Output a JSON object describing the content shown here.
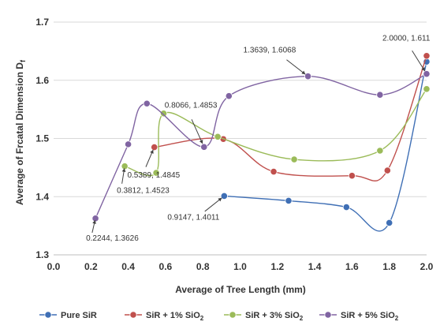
{
  "chart_data": {
    "type": "line",
    "xlabel": "Average of Tree Length (mm)",
    "ylabel": "Average of Frcatal Dimension D",
    "ylabel_sub": "f",
    "xlim": [
      0.0,
      2.0
    ],
    "ylim": [
      1.3,
      1.7
    ],
    "x_ticks": [
      "0.0",
      "0.2",
      "0.4",
      "0.6",
      "0.8",
      "1.0",
      "1.2",
      "1.4",
      "1.6",
      "1.8",
      "2.0"
    ],
    "y_ticks": [
      "1.3",
      "1.4",
      "1.5",
      "1.6",
      "1.7"
    ],
    "grid": "horizontal",
    "legend_position": "bottom",
    "series": [
      {
        "name": "Pure SiR",
        "legend": {
          "pre": "Pure SiR",
          "sub": "",
          "post": ""
        },
        "color": "#3f6fb5",
        "x": [
          0.9147,
          1.26,
          1.57,
          1.8,
          2.0
        ],
        "y": [
          1.4011,
          1.393,
          1.382,
          1.355,
          1.632
        ]
      },
      {
        "name": "SiR + 1% SiO2",
        "legend": {
          "pre": "SiR + 1% SiO",
          "sub": "2",
          "post": ""
        },
        "color": "#c0504d",
        "x": [
          0.54,
          0.91,
          1.18,
          1.6,
          1.79,
          2.0
        ],
        "y": [
          1.485,
          1.499,
          1.443,
          1.436,
          1.445,
          1.642
        ]
      },
      {
        "name": "SiR + 3% SiO2",
        "legend": {
          "pre": "SiR + 3% SiO",
          "sub": "2",
          "post": ""
        },
        "color": "#9bbb59",
        "x": [
          0.3812,
          0.55,
          0.59,
          0.88,
          1.29,
          1.75,
          2.0
        ],
        "y": [
          1.4523,
          1.441,
          1.543,
          1.503,
          1.464,
          1.479,
          1.585
        ]
      },
      {
        "name": "SiR + 5% SiO2",
        "legend": {
          "pre": "SiR + 5% SiO",
          "sub": "2",
          "post": ""
        },
        "color": "#8064a2",
        "x": [
          0.2244,
          0.4,
          0.5,
          0.8066,
          0.94,
          1.3639,
          1.75,
          2.0
        ],
        "y": [
          1.3626,
          1.49,
          1.56,
          1.4853,
          1.573,
          1.6068,
          1.575,
          1.611
        ]
      }
    ],
    "annotations": [
      {
        "text": "0.2244, 1.3626",
        "x": 0.2244,
        "y": 1.3626
      },
      {
        "text": "0.3812, 1.4523",
        "x": 0.3812,
        "y": 1.4523
      },
      {
        "text": "0.5389, 1.4845",
        "x": 0.5389,
        "y": 1.4845
      },
      {
        "text": "0.8066, 1.4853",
        "x": 0.8066,
        "y": 1.4853
      },
      {
        "text": "0.9147, 1.4011",
        "x": 0.9147,
        "y": 1.4011
      },
      {
        "text": "1.3639, 1.6068",
        "x": 1.3639,
        "y": 1.6068
      },
      {
        "text": "2.0000, 1.611",
        "x": 2.0,
        "y": 1.611
      }
    ]
  }
}
